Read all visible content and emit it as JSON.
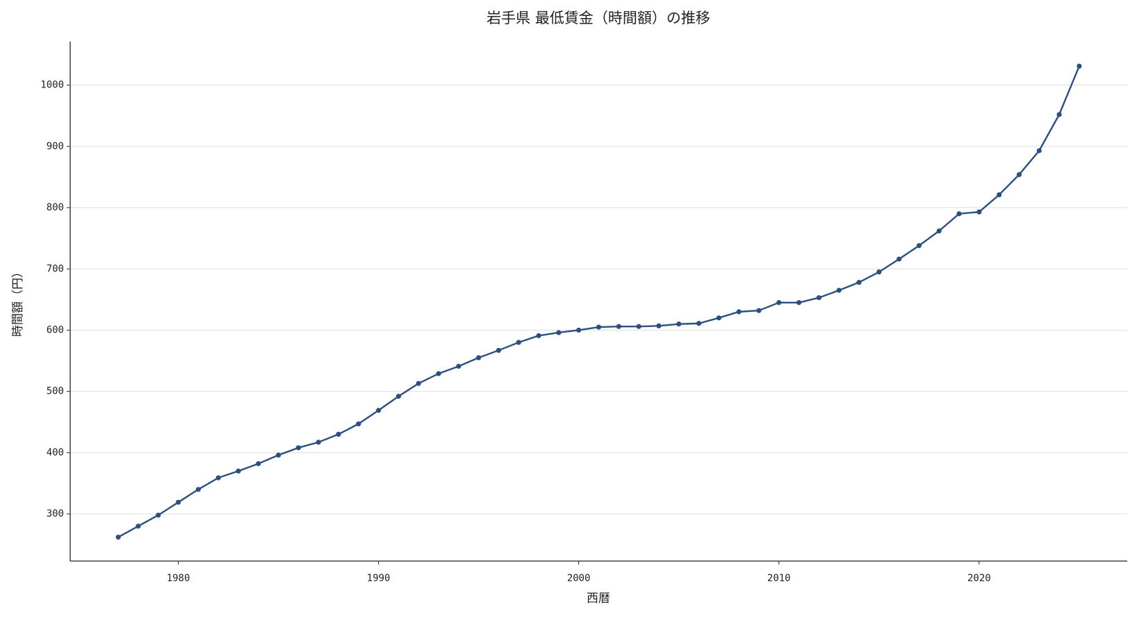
{
  "chart_data": {
    "type": "line",
    "title": "岩手県 最低賃金（時間額）の推移",
    "x_label": "西暦",
    "y_label": "時間額（円）",
    "x": [
      1977,
      1978,
      1979,
      1980,
      1981,
      1982,
      1983,
      1984,
      1985,
      1986,
      1987,
      1988,
      1989,
      1990,
      1991,
      1992,
      1993,
      1994,
      1995,
      1996,
      1997,
      1998,
      1999,
      2000,
      2001,
      2002,
      2003,
      2004,
      2005,
      2006,
      2007,
      2008,
      2009,
      2010,
      2011,
      2012,
      2013,
      2014,
      2015,
      2016,
      2017,
      2018,
      2019,
      2020,
      2021,
      2022,
      2023,
      2024,
      2025
    ],
    "series": [
      {
        "name": "最低賃金",
        "color": "#2b4f80",
        "values": [
          262,
          280,
          298,
          319,
          340,
          359,
          370,
          382,
          396,
          408,
          417,
          430,
          447,
          469,
          492,
          513,
          529,
          541,
          555,
          567,
          580,
          591,
          596,
          600,
          605,
          606,
          606,
          607,
          610,
          611,
          620,
          630,
          632,
          645,
          645,
          653,
          665,
          678,
          695,
          716,
          738,
          762,
          790,
          793,
          821,
          854,
          893,
          952,
          1031
        ]
      }
    ],
    "xlim": [
      1974.6,
      2027.4
    ],
    "xticks": [
      1980,
      1990,
      2000,
      2010,
      2020
    ],
    "ylim": [
      223,
      1071
    ],
    "yticks": [
      300,
      400,
      500,
      600,
      700,
      800,
      900,
      1000
    ],
    "grid": true
  }
}
